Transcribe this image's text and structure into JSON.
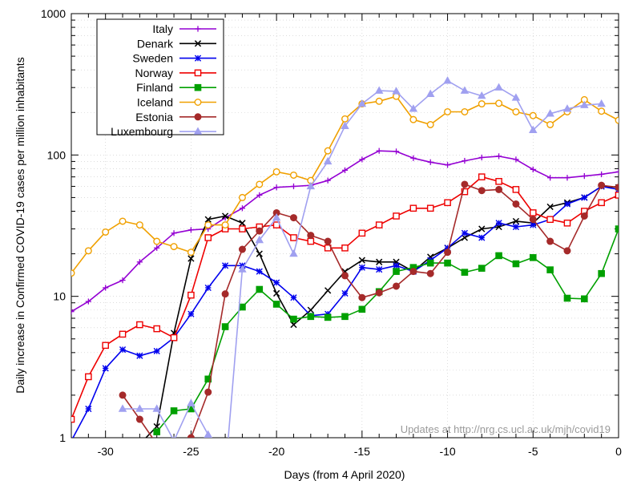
{
  "chart_data": {
    "type": "line",
    "xlabel": "Days (from 4 April 2020)",
    "ylabel": "Daily increase in Confirmed COVID-19 cases per million inhabitants",
    "xlim": [
      -32,
      0
    ],
    "ylim": [
      1,
      1000
    ],
    "y_scale": "log",
    "grid": true,
    "legend_position": "top-left",
    "x_ticks": [
      -30,
      -25,
      -20,
      -15,
      -10,
      -5,
      0
    ],
    "x_tick_labels": [
      "-30",
      "-25",
      "-20",
      "-15",
      "-10",
      "-5",
      "0"
    ],
    "y_ticks": [
      1,
      10,
      100,
      1000
    ],
    "y_tick_labels": [
      "1",
      "10",
      "100",
      "1000"
    ],
    "annotation": "Updates at http://nrg.cs.ucl.ac.uk/mjh/covid19",
    "series": [
      {
        "name": "Italy",
        "color": "#9400d3",
        "marker": "plus",
        "x": [
          -32,
          -31,
          -30,
          -29,
          -28,
          -27,
          -26,
          -25,
          -24,
          -23,
          -22,
          -21,
          -20,
          -19,
          -18,
          -17,
          -16,
          -15,
          -14,
          -13,
          -12,
          -11,
          -10,
          -9,
          -8,
          -7,
          -6,
          -5,
          -4,
          -3,
          -2,
          -1,
          0
        ],
        "y": [
          7.8,
          9.2,
          11.5,
          13,
          17.5,
          22,
          28,
          29.5,
          30,
          36,
          42,
          52,
          59,
          60,
          61,
          66,
          78,
          93,
          107,
          106,
          95,
          89,
          85,
          91,
          96,
          98,
          93,
          79,
          69,
          69,
          71,
          73,
          76
        ]
      },
      {
        "name": "Denark",
        "color": "#000000",
        "marker": "x",
        "x": [
          -28,
          -27,
          -26,
          -25,
          -24,
          -23,
          -22,
          -21,
          -20,
          -19,
          -18,
          -17,
          -16,
          -15,
          -14,
          -13,
          -12,
          -11,
          -10,
          -9,
          -8,
          -7,
          -6,
          -5,
          -4,
          -3,
          -2,
          -1,
          0
        ],
        "y": [
          0.9,
          1.2,
          5.5,
          18.5,
          35,
          37,
          33,
          20,
          10.5,
          6.3,
          8,
          11,
          15,
          18,
          17.5,
          17.5,
          15,
          19,
          22,
          26,
          30,
          31,
          34,
          33,
          43,
          46,
          50,
          60,
          59
        ]
      },
      {
        "name": "Sweden",
        "color": "#0000ee",
        "marker": "star",
        "x": [
          -32,
          -31,
          -30,
          -29,
          -28,
          -27,
          -26,
          -25,
          -24,
          -23,
          -22,
          -21,
          -20,
          -19,
          -18,
          -17,
          -16,
          -15,
          -14,
          -13,
          -12,
          -11,
          -10,
          -9,
          -8,
          -7,
          -6,
          -5,
          -4,
          -3,
          -2,
          -1,
          0
        ],
        "y": [
          0.95,
          1.6,
          3.1,
          4.2,
          3.8,
          4.1,
          5.1,
          7.5,
          11.5,
          16.5,
          16.5,
          15,
          12.5,
          9.8,
          7.3,
          7.5,
          10.5,
          16,
          15.5,
          16.5,
          15,
          18,
          22,
          28,
          26,
          33,
          31,
          32,
          35,
          45,
          50,
          60,
          57
        ]
      },
      {
        "name": "Norway",
        "color": "#ee0000",
        "marker": "square-open",
        "x": [
          -32,
          -31,
          -30,
          -29,
          -28,
          -27,
          -26,
          -25,
          -24,
          -23,
          -22,
          -21,
          -20,
          -19,
          -18,
          -17,
          -16,
          -15,
          -14,
          -13,
          -12,
          -11,
          -10,
          -9,
          -8,
          -7,
          -6,
          -5,
          -4,
          -3,
          -2,
          -1,
          0
        ],
        "y": [
          1.35,
          2.7,
          4.5,
          5.4,
          6.3,
          5.9,
          5.1,
          10.2,
          26,
          30,
          30,
          31,
          32,
          26,
          24.5,
          22,
          22,
          28,
          32,
          37,
          42,
          42,
          46,
          55,
          70,
          65,
          57,
          39,
          35,
          33,
          40,
          46,
          52
        ]
      },
      {
        "name": "Finland",
        "color": "#00a000",
        "marker": "square-filled",
        "x": [
          -27,
          -26,
          -25,
          -24,
          -23,
          -22,
          -21,
          -20,
          -19,
          -18,
          -17,
          -16,
          -15,
          -14,
          -13,
          -12,
          -11,
          -10,
          -9,
          -8,
          -7,
          -6,
          -5,
          -4,
          -3,
          -2,
          -1,
          0
        ],
        "y": [
          1.1,
          1.55,
          1.6,
          2.6,
          6.1,
          8.4,
          11.2,
          8.8,
          6.9,
          7.2,
          7.1,
          7.2,
          8.1,
          10.8,
          15,
          16,
          17.2,
          17.2,
          14.8,
          15.8,
          19.4,
          17,
          18.8,
          15.4,
          9.7,
          9.6,
          14.5,
          30
        ]
      },
      {
        "name": "Iceland",
        "color": "#f0a000",
        "marker": "circle-open",
        "x": [
          -32,
          -31,
          -30,
          -29,
          -28,
          -27,
          -26,
          -25,
          -24,
          -23,
          -22,
          -21,
          -20,
          -19,
          -18,
          -17,
          -16,
          -15,
          -14,
          -13,
          -12,
          -11,
          -10,
          -9,
          -8,
          -7,
          -6,
          -5,
          -4,
          -3,
          -2,
          -1,
          0
        ],
        "y": [
          14.6,
          21,
          28.5,
          34,
          32,
          24.5,
          22.5,
          20.5,
          32,
          32,
          50,
          62,
          76,
          72,
          66,
          107,
          180,
          230,
          240,
          260,
          178,
          164,
          202,
          202,
          230,
          232,
          202,
          190,
          164,
          202,
          246,
          204,
          176
        ]
      },
      {
        "name": "Estonia",
        "color": "#a52a2a",
        "marker": "circle-filled",
        "x": [
          -29,
          -28,
          -27,
          -26,
          -25,
          -24,
          -23,
          -22,
          -21,
          -20,
          -19,
          -18,
          -17,
          -16,
          -15,
          -14,
          -13,
          -12,
          -11,
          -10,
          -9,
          -8,
          -7,
          -6,
          -5,
          -4,
          -3,
          -2,
          -1,
          0
        ],
        "y": [
          2,
          1.35,
          0.9,
          0.7,
          1,
          2.1,
          10.4,
          21.5,
          29,
          39,
          36,
          27,
          24.5,
          14,
          9.8,
          10.6,
          11.8,
          15,
          14.5,
          20.5,
          62,
          56,
          57,
          45,
          35,
          24.5,
          21,
          37,
          61,
          59
        ]
      },
      {
        "name": "Luxembourg",
        "color": "#a0a0f0",
        "marker": "triangle",
        "x": [
          -29,
          -28,
          -27,
          -26,
          -25,
          -24,
          -23,
          -22,
          -21,
          -20,
          -19,
          -18,
          -17,
          -16,
          -15,
          -14,
          -13,
          -12,
          -11,
          -10,
          -9,
          -8,
          -7,
          -6,
          -5,
          -4,
          -3,
          -2,
          -1
        ],
        "y": [
          1.6,
          1.6,
          1.6,
          0.95,
          1.75,
          1.05,
          0.55,
          15.5,
          25,
          36,
          20,
          60,
          90,
          160,
          230,
          285,
          282,
          212,
          270,
          335,
          285,
          262,
          300,
          254,
          150,
          196,
          212,
          225,
          230
        ]
      }
    ]
  }
}
